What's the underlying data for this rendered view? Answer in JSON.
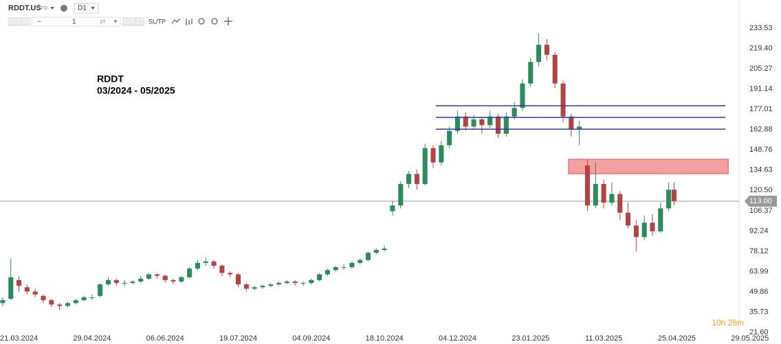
{
  "toolbar": {
    "symbol": "RDDT.US",
    "kind": "CFD",
    "interval": "D1",
    "bid": "113.00",
    "volume": "1",
    "ask": "114.22",
    "sltp": "SL/TP"
  },
  "chart_data": {
    "type": "candlestick",
    "title": "RDDT",
    "subtitle": "03/2024 - 05/2025",
    "up_color": "#2d8a5c",
    "down_color": "#b04545",
    "x": [
      -6,
      -3,
      0,
      3,
      6,
      9,
      12,
      15,
      18,
      21,
      24,
      27,
      30,
      33,
      36,
      39,
      42,
      45,
      48,
      51,
      54,
      57,
      60,
      63,
      66,
      69,
      72,
      75,
      78,
      81,
      84,
      87,
      90,
      93,
      96,
      99,
      102,
      105,
      108,
      111,
      114,
      117,
      120,
      123,
      126,
      129,
      132,
      135,
      138,
      141,
      144,
      147,
      150,
      153,
      156,
      159,
      162,
      165,
      168,
      171,
      174,
      177,
      180,
      183,
      186,
      189,
      192,
      195,
      198,
      201,
      204,
      207,
      210,
      213,
      216,
      219,
      222,
      225,
      228,
      231,
      234,
      237,
      240,
      242
    ],
    "open": [
      42,
      45,
      58,
      53,
      50,
      47,
      44,
      41,
      40,
      42,
      44,
      46,
      47,
      55,
      58,
      56,
      56,
      57,
      59,
      62,
      61,
      58,
      57,
      60,
      66,
      70,
      71,
      68,
      63,
      62,
      55,
      52,
      53,
      54,
      55,
      56,
      57,
      56,
      56,
      58,
      62,
      65,
      67,
      67,
      70,
      72,
      77,
      79,
      106,
      110,
      125,
      132,
      125,
      150,
      140,
      152,
      162,
      172,
      165,
      170,
      166,
      172,
      160,
      172,
      178,
      195,
      210,
      222,
      215,
      195,
      172,
      163,
      138,
      110,
      125,
      112,
      118,
      105,
      96,
      88,
      98,
      92,
      108,
      121
    ],
    "high": [
      46,
      73,
      61,
      55,
      52,
      48,
      45,
      42,
      43,
      45,
      47,
      48,
      56,
      60,
      59,
      58,
      58,
      61,
      63,
      63,
      62,
      59,
      61,
      67,
      72,
      74,
      72,
      69,
      64,
      63,
      56,
      54,
      55,
      56,
      57,
      58,
      58,
      57,
      59,
      63,
      66,
      68,
      69,
      71,
      73,
      78,
      80,
      82,
      113,
      127,
      134,
      135,
      153,
      152,
      155,
      165,
      176,
      175,
      173,
      172,
      176,
      174,
      175,
      182,
      198,
      213,
      230,
      226,
      217,
      197,
      174,
      169,
      142,
      140,
      128,
      126,
      120,
      112,
      100,
      103,
      104,
      112,
      126,
      126
    ],
    "low": [
      40,
      44,
      50,
      48,
      46,
      42,
      39,
      37,
      39,
      41,
      43,
      44,
      46,
      54,
      54,
      54,
      55,
      56,
      58,
      59,
      56,
      55,
      56,
      59,
      65,
      68,
      66,
      61,
      60,
      53,
      50,
      51,
      52,
      53,
      54,
      55,
      54,
      54,
      55,
      57,
      61,
      64,
      65,
      66,
      69,
      71,
      76,
      78,
      103,
      108,
      122,
      121,
      124,
      136,
      138,
      150,
      160,
      162,
      163,
      160,
      164,
      157,
      158,
      170,
      176,
      193,
      207,
      211,
      192,
      168,
      158,
      152,
      106,
      108,
      108,
      110,
      100,
      94,
      78,
      86,
      89,
      91,
      106,
      110
    ],
    "close": [
      44,
      60,
      54,
      50,
      48,
      44,
      41,
      40,
      42,
      44,
      46,
      46,
      55,
      58,
      56,
      56,
      57,
      59,
      62,
      61,
      58,
      57,
      60,
      66,
      70,
      71,
      68,
      63,
      62,
      55,
      52,
      53,
      54,
      55,
      56,
      57,
      56,
      56,
      58,
      62,
      65,
      67,
      67,
      70,
      72,
      77,
      79,
      80,
      110,
      125,
      132,
      125,
      150,
      140,
      152,
      162,
      172,
      165,
      170,
      166,
      172,
      160,
      172,
      178,
      195,
      210,
      222,
      215,
      195,
      172,
      163,
      165,
      110,
      125,
      112,
      118,
      105,
      96,
      88,
      98,
      92,
      108,
      121,
      113
    ],
    "xlim": [
      -7,
      266
    ],
    "xticks": [
      {
        "value": 0,
        "label": "21.03.2024"
      },
      {
        "value": 27,
        "label": "29.04.2024"
      },
      {
        "value": 54,
        "label": "06.06.2024"
      },
      {
        "value": 81,
        "label": "19.07.2024"
      },
      {
        "value": 108,
        "label": "04.09.2024"
      },
      {
        "value": 135,
        "label": "18.10.2024"
      },
      {
        "value": 162,
        "label": "04.12.2024"
      },
      {
        "value": 189,
        "label": "23.01.2025"
      },
      {
        "value": 216,
        "label": "11.03.2025"
      },
      {
        "value": 243,
        "label": "25.04.2025"
      },
      {
        "value": 270,
        "label": "29.05.2025"
      }
    ],
    "ylim": [
      21.6,
      253.2
    ],
    "yticks": [
      233.53,
      {
        "value": 219.4,
        "label": "219.40"
      },
      205.27,
      191.14,
      177.01,
      162.88,
      148.76,
      134.63,
      {
        "value": 120.5,
        "label": "120.50"
      },
      106.37,
      92.24,
      78.12,
      63.99,
      49.86,
      35.73,
      {
        "value": 21.6,
        "label": "21.60"
      }
    ],
    "current_price": {
      "value": 113,
      "label": "113.00"
    },
    "levels": {
      "start": 154,
      "end": 261,
      "color": "#2e3a9e",
      "values": [
        179.5,
        171.4,
        163.2
      ]
    },
    "zone": {
      "start": 203,
      "end": 262,
      "low": 132.1,
      "high": 142.2,
      "color": "#f08080"
    },
    "timer": "10h 26m"
  }
}
